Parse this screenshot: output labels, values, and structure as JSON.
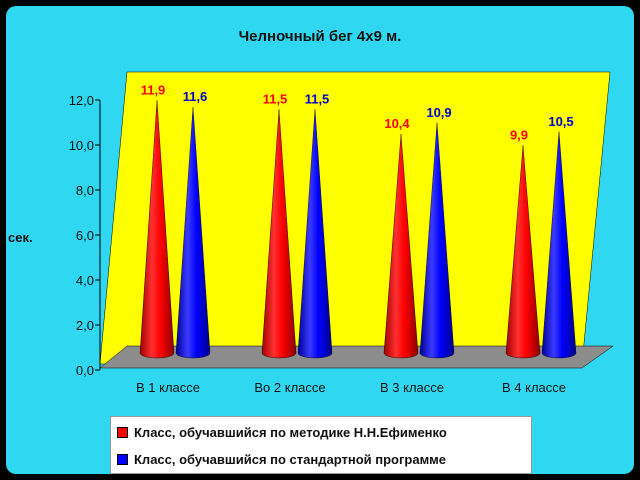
{
  "chart_data": {
    "type": "bar",
    "title": "Челночный бег 4х9 м.",
    "ylabel": "сек.",
    "categories": [
      "В 1 классе",
      "Во 2 классе",
      "В 3 классе",
      "В 4 классе"
    ],
    "series": [
      {
        "name": "Класс, обучавшийся по методике Н.Н.Ефименко",
        "color": "#ff0000",
        "values": [
          11.9,
          11.5,
          10.4,
          9.9
        ],
        "labels": [
          "11,9",
          "11,5",
          "10,4",
          "9,9"
        ]
      },
      {
        "name": "Класс, обучавшийся по стандартной программе",
        "color": "#0000ff",
        "values": [
          11.6,
          11.5,
          10.9,
          10.5
        ],
        "labels": [
          "11,6",
          "11,5",
          "10,9",
          "10,5"
        ]
      }
    ],
    "yticks": [
      "0,0",
      "2,0",
      "4,0",
      "6,0",
      "8,0",
      "10,0",
      "12,0"
    ],
    "ylim": [
      0,
      12
    ],
    "legend_position": "bottom",
    "grid": false
  },
  "colors": {
    "background": "#2fd8f0",
    "wall": "#ffff00",
    "floor": "#808080"
  }
}
